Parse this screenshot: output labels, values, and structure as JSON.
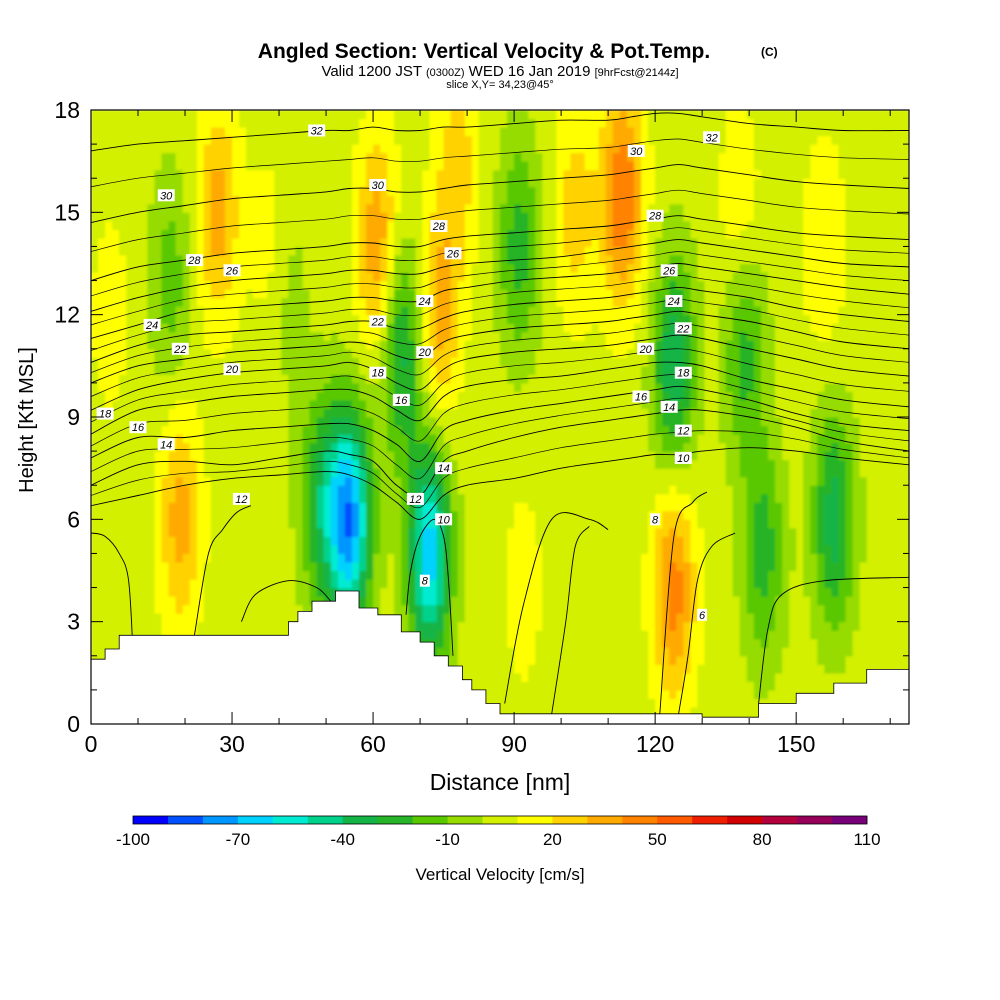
{
  "header": {
    "title_main": "Angled Section: Vertical Velocity & Pot.Temp.",
    "title_unit": "(C)",
    "valid_a": "Valid 1200 JST",
    "valid_b": "(0300Z)",
    "valid_c": "WED 16 Jan 2019",
    "valid_d": "[9hrFcst@2144z]",
    "slice": "slice X,Y= 34,23@45°"
  },
  "chart_data": {
    "type": "contour",
    "xlabel": "Distance [nm]",
    "ylabel": "Height [Kft MSL]",
    "xlim": [
      0,
      174
    ],
    "ylim": [
      0,
      18
    ],
    "x_ticks": [
      0,
      30,
      60,
      90,
      120,
      150
    ],
    "y_ticks": [
      0,
      3,
      6,
      9,
      12,
      15,
      18
    ],
    "colorbar": {
      "label": "Vertical Velocity [cm/s]",
      "min": -100,
      "max": 110,
      "step": 10,
      "tick_labels": [
        "-100",
        "-70",
        "-40",
        "-10",
        "20",
        "50",
        "80",
        "110"
      ],
      "colors": [
        "#0000ff",
        "#0050ff",
        "#0096ff",
        "#00d2ff",
        "#00ebd2",
        "#00d28c",
        "#14b446",
        "#28b428",
        "#5ac800",
        "#96dc00",
        "#d2f000",
        "#ffff00",
        "#ffd200",
        "#ffaa00",
        "#ff8200",
        "#ff5a00",
        "#f01e00",
        "#d20000",
        "#b4003c",
        "#96005a",
        "#780078"
      ]
    },
    "velocity_field": {
      "background_cm_s": 5,
      "features": [
        {
          "x": 4,
          "y": 12,
          "value": 15
        },
        {
          "x": 17,
          "y": 13,
          "value": -15
        },
        {
          "x": 19,
          "y": 6,
          "value": 35
        },
        {
          "x": 27,
          "y": 15,
          "value": 35
        },
        {
          "x": 38,
          "y": 14,
          "value": 15
        },
        {
          "x": 42,
          "y": 12.5,
          "value": -5
        },
        {
          "x": 49,
          "y": 6.5,
          "value": -30
        },
        {
          "x": 55,
          "y": 6,
          "value": -75
        },
        {
          "x": 61,
          "y": 14,
          "value": 40
        },
        {
          "x": 66,
          "y": 11,
          "value": -35
        },
        {
          "x": 72,
          "y": 5,
          "value": -65
        },
        {
          "x": 74,
          "y": 12,
          "value": 35
        },
        {
          "x": 78,
          "y": 16.5,
          "value": 25
        },
        {
          "x": 91,
          "y": 14,
          "value": -25
        },
        {
          "x": 92,
          "y": 4,
          "value": 15
        },
        {
          "x": 103,
          "y": 15,
          "value": 25
        },
        {
          "x": 113,
          "y": 15.5,
          "value": 50
        },
        {
          "x": 124,
          "y": 10.5,
          "value": -40
        },
        {
          "x": 124,
          "y": 4,
          "value": 45
        },
        {
          "x": 138,
          "y": 15,
          "value": 20
        },
        {
          "x": 139,
          "y": 11,
          "value": -25
        },
        {
          "x": 143,
          "y": 5,
          "value": -25
        },
        {
          "x": 156,
          "y": 14,
          "value": 20
        },
        {
          "x": 158,
          "y": 6,
          "value": -35
        }
      ]
    },
    "terrain": {
      "x": [
        0,
        3,
        3,
        6,
        6,
        42,
        42,
        44,
        44,
        47,
        47,
        52,
        52,
        57,
        57,
        61,
        61,
        66,
        66,
        70,
        70,
        73,
        73,
        76,
        76,
        79,
        79,
        81,
        81,
        84,
        84,
        87,
        87,
        130,
        130,
        142,
        142,
        150,
        150,
        158,
        158,
        165,
        165,
        174
      ],
      "height": [
        1.9,
        1.9,
        2.2,
        2.2,
        2.6,
        2.6,
        3.0,
        3.0,
        3.3,
        3.3,
        3.6,
        3.6,
        3.9,
        3.9,
        3.4,
        3.4,
        3.2,
        3.2,
        2.7,
        2.7,
        2.4,
        2.4,
        2.0,
        2.0,
        1.7,
        1.7,
        1.3,
        1.3,
        1.0,
        1.0,
        0.6,
        0.6,
        0.3,
        0.3,
        0.2,
        0.2,
        0.6,
        0.6,
        0.9,
        0.9,
        1.2,
        1.2,
        1.6,
        1.6
      ]
    },
    "theta_contours": {
      "levels_C": [
        6,
        8,
        10,
        12,
        14,
        16,
        18,
        20,
        22,
        24,
        26,
        28,
        30,
        32
      ],
      "control_x": [
        0,
        10,
        20,
        30,
        40,
        50,
        55,
        60,
        65,
        70,
        75,
        80,
        90,
        100,
        110,
        115,
        120,
        125,
        130,
        140,
        150,
        160,
        174
      ],
      "heights": {
        "10": [
          6.4,
          6.7,
          7.0,
          7.2,
          7.3,
          7.4,
          7.3,
          7.0,
          6.5,
          6.0,
          6.7,
          7.0,
          7.2,
          7.5,
          7.7,
          7.8,
          7.9,
          7.9,
          8.0,
          8.1,
          8.0,
          7.8,
          7.6
        ],
        "12": [
          7.0,
          7.6,
          7.7,
          7.6,
          7.8,
          8.0,
          7.9,
          7.7,
          7.0,
          6.7,
          7.7,
          8.0,
          8.4,
          8.7,
          8.9,
          9.0,
          9.1,
          9.2,
          9.2,
          9.0,
          8.7,
          8.3,
          8.0
        ],
        "14": [
          7.8,
          8.4,
          8.4,
          8.6,
          8.7,
          8.8,
          8.8,
          8.6,
          8.2,
          7.7,
          8.6,
          8.9,
          9.2,
          9.4,
          9.6,
          9.7,
          9.8,
          9.9,
          9.8,
          9.5,
          9.1,
          8.8,
          8.6
        ],
        "16": [
          8.5,
          9.2,
          9.4,
          9.6,
          9.7,
          9.8,
          9.8,
          9.6,
          9.2,
          8.9,
          9.6,
          9.9,
          10.1,
          10.2,
          10.4,
          10.5,
          10.6,
          10.6,
          10.5,
          10.1,
          9.8,
          9.5,
          9.3
        ],
        "18": [
          9.2,
          9.8,
          10.1,
          10.3,
          10.4,
          10.5,
          10.6,
          10.4,
          10.0,
          9.8,
          10.4,
          10.7,
          10.9,
          11.0,
          11.1,
          11.2,
          11.3,
          11.4,
          11.3,
          11.0,
          10.7,
          10.4,
          10.2
        ],
        "20": [
          10.0,
          10.5,
          10.7,
          10.9,
          11.0,
          11.1,
          11.2,
          11.1,
          10.8,
          10.7,
          11.2,
          11.4,
          11.6,
          11.7,
          11.8,
          11.9,
          12.0,
          12.1,
          12.0,
          11.8,
          11.5,
          11.2,
          11.0
        ],
        "22": [
          10.6,
          11.1,
          11.4,
          11.5,
          11.6,
          11.7,
          11.8,
          11.8,
          11.6,
          11.6,
          11.9,
          12.1,
          12.3,
          12.4,
          12.5,
          12.6,
          12.7,
          12.8,
          12.7,
          12.5,
          12.2,
          12.0,
          11.8
        ],
        "24": [
          11.3,
          11.7,
          12.1,
          12.2,
          12.3,
          12.4,
          12.5,
          12.5,
          12.4,
          12.4,
          12.7,
          12.8,
          13.0,
          13.1,
          13.2,
          13.3,
          13.4,
          13.5,
          13.4,
          13.2,
          13.0,
          12.8,
          12.6
        ],
        "26": [
          12.1,
          12.5,
          12.8,
          13.0,
          13.1,
          13.2,
          13.3,
          13.3,
          13.2,
          13.2,
          13.4,
          13.5,
          13.6,
          13.7,
          13.9,
          14.0,
          14.1,
          14.2,
          14.1,
          13.9,
          13.7,
          13.5,
          13.4
        ],
        "28": [
          13.0,
          13.4,
          13.6,
          13.8,
          13.9,
          14.0,
          14.1,
          14.1,
          14.0,
          14.0,
          14.2,
          14.3,
          14.4,
          14.5,
          14.6,
          14.7,
          14.8,
          14.9,
          14.8,
          14.6,
          14.4,
          14.3,
          14.2
        ],
        "30": [
          14.7,
          15.0,
          15.2,
          15.4,
          15.5,
          15.6,
          15.7,
          15.7,
          15.6,
          15.6,
          15.7,
          15.8,
          15.9,
          16.0,
          16.1,
          16.2,
          16.3,
          16.4,
          16.3,
          16.1,
          15.9,
          15.8,
          15.7
        ],
        "32": [
          16.8,
          17.0,
          17.1,
          17.2,
          17.3,
          17.4,
          17.4,
          17.5,
          17.4,
          17.4,
          17.5,
          17.5,
          17.6,
          17.7,
          17.7,
          17.8,
          17.9,
          17.9,
          17.8,
          17.6,
          17.5,
          17.4,
          17.4
        ]
      },
      "loops": [
        {
          "level": 8,
          "x": [
            67,
            68,
            70,
            73,
            75,
            76,
            77
          ],
          "height": [
            3.2,
            4.5,
            5.5,
            6.0,
            5.5,
            4.3,
            2.0
          ]
        },
        {
          "level": 8,
          "x": [
            0,
            3,
            6,
            8,
            9
          ],
          "height": [
            5.6,
            5.5,
            5.0,
            4.2,
            1.9
          ]
        },
        {
          "level": 8,
          "x": [
            22,
            25,
            28,
            31,
            34
          ],
          "height": [
            2.6,
            5.0,
            5.7,
            6.2,
            6.4
          ]
        },
        {
          "level": 8,
          "x": [
            32,
            35,
            42,
            48,
            51
          ],
          "height": [
            3.0,
            3.8,
            4.2,
            4.0,
            3.6
          ]
        },
        {
          "level": 8,
          "x": [
            88,
            92,
            98,
            106,
            110
          ],
          "height": [
            0.6,
            3.5,
            6.0,
            6.0,
            5.7
          ]
        },
        {
          "level": 8,
          "x": [
            121,
            124,
            128,
            131
          ],
          "height": [
            0.3,
            5.5,
            6.5,
            6.8
          ]
        },
        {
          "level": 6,
          "x": [
            98,
            101,
            103,
            106
          ],
          "height": [
            0.3,
            3.0,
            5.2,
            5.8
          ]
        },
        {
          "level": 6,
          "x": [
            125,
            127,
            129,
            132,
            137
          ],
          "height": [
            0.3,
            2.0,
            4.2,
            5.2,
            5.6
          ]
        },
        {
          "level": 6,
          "x": [
            142,
            144,
            147,
            156,
            174
          ],
          "height": [
            0.6,
            2.8,
            3.8,
            4.2,
            4.3
          ]
        }
      ],
      "labels": [
        {
          "text": "32",
          "x": 48,
          "y": 17.4
        },
        {
          "text": "32",
          "x": 132,
          "y": 17.2
        },
        {
          "text": "30",
          "x": 16,
          "y": 15.5
        },
        {
          "text": "30",
          "x": 61,
          "y": 15.8
        },
        {
          "text": "30",
          "x": 116,
          "y": 16.8
        },
        {
          "text": "28",
          "x": 74,
          "y": 14.6
        },
        {
          "text": "28",
          "x": 120,
          "y": 14.9
        },
        {
          "text": "28",
          "x": 22,
          "y": 13.6
        },
        {
          "text": "26",
          "x": 30,
          "y": 13.3
        },
        {
          "text": "26",
          "x": 77,
          "y": 13.8
        },
        {
          "text": "26",
          "x": 123,
          "y": 13.3
        },
        {
          "text": "24",
          "x": 13,
          "y": 11.7
        },
        {
          "text": "24",
          "x": 71,
          "y": 12.4
        },
        {
          "text": "24",
          "x": 124,
          "y": 12.4
        },
        {
          "text": "22",
          "x": 19,
          "y": 11.0
        },
        {
          "text": "22",
          "x": 61,
          "y": 11.8
        },
        {
          "text": "22",
          "x": 126,
          "y": 11.6
        },
        {
          "text": "20",
          "x": 30,
          "y": 10.4
        },
        {
          "text": "20",
          "x": 71,
          "y": 10.9
        },
        {
          "text": "20",
          "x": 118,
          "y": 11.0
        },
        {
          "text": "18",
          "x": 3,
          "y": 9.1
        },
        {
          "text": "18",
          "x": 61,
          "y": 10.3
        },
        {
          "text": "18",
          "x": 126,
          "y": 10.3
        },
        {
          "text": "16",
          "x": 10,
          "y": 8.7
        },
        {
          "text": "16",
          "x": 66,
          "y": 9.5
        },
        {
          "text": "16",
          "x": 117,
          "y": 9.6
        },
        {
          "text": "14",
          "x": 16,
          "y": 8.2
        },
        {
          "text": "14",
          "x": 75,
          "y": 7.5
        },
        {
          "text": "14",
          "x": 123,
          "y": 9.3
        },
        {
          "text": "12",
          "x": 32,
          "y": 6.6
        },
        {
          "text": "12",
          "x": 69,
          "y": 6.6
        },
        {
          "text": "12",
          "x": 126,
          "y": 8.6
        },
        {
          "text": "10",
          "x": 75,
          "y": 6.0
        },
        {
          "text": "10",
          "x": 126,
          "y": 7.8
        },
        {
          "text": "8",
          "x": 71,
          "y": 4.2
        },
        {
          "text": "8",
          "x": 120,
          "y": 6.0
        },
        {
          "text": "6",
          "x": 130,
          "y": 3.2
        }
      ]
    }
  }
}
